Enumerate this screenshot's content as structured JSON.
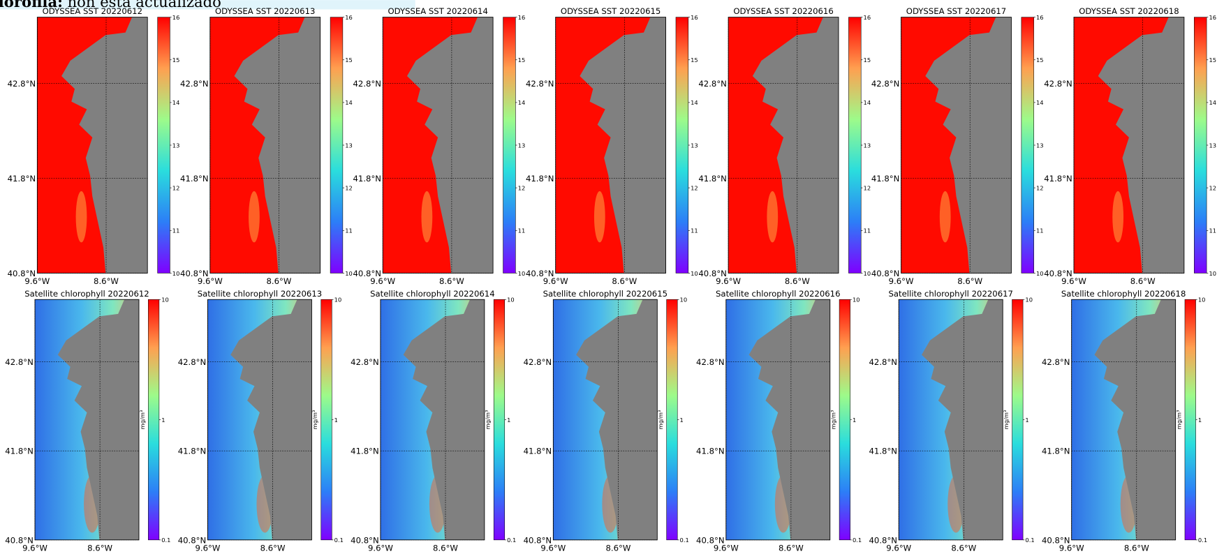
{
  "header": {
    "label": "lorofila:",
    "text": "non está actualizado"
  },
  "maps": {
    "xlim": [
      -9.6,
      -8.0
    ],
    "ylim": [
      40.8,
      43.5
    ],
    "lat_ticks": [
      {
        "value": 42.8,
        "label": "42.8°N"
      },
      {
        "value": 41.8,
        "label": "41.8°N"
      },
      {
        "value": 40.8,
        "label": "40.8°N"
      }
    ],
    "lon_ticks": [
      {
        "value": -9.6,
        "label": "9.6°W"
      },
      {
        "value": -8.6,
        "label": "8.6°W"
      }
    ]
  },
  "sst": {
    "titles": [
      "ODYSSEA SST 20220612",
      "ODYSSEA SST 20220613",
      "ODYSSEA SST 20220614",
      "ODYSSEA SST 20220615",
      "ODYSSEA SST 20220616",
      "ODYSSEA SST 20220617",
      "ODYSSEA SST 20220618"
    ],
    "colorbar": {
      "lim": [
        10,
        16
      ],
      "ticks": [
        10,
        11,
        12,
        13,
        14,
        15,
        16
      ]
    }
  },
  "chlorophyll": {
    "titles": [
      "Satellite chlorophyll 20220612",
      "Satellite chlorophyll 20220613",
      "Satellite chlorophyll 20220614",
      "Satellite chlorophyll 20220615",
      "Satellite chlorophyll 20220616",
      "Satellite chlorophyll 20220617",
      "Satellite chlorophyll 20220618"
    ],
    "colorbar": {
      "lim": [
        0.1,
        10
      ],
      "ticks": [
        0.1,
        1,
        10
      ],
      "log": true,
      "unit": "mg/m³"
    }
  }
}
